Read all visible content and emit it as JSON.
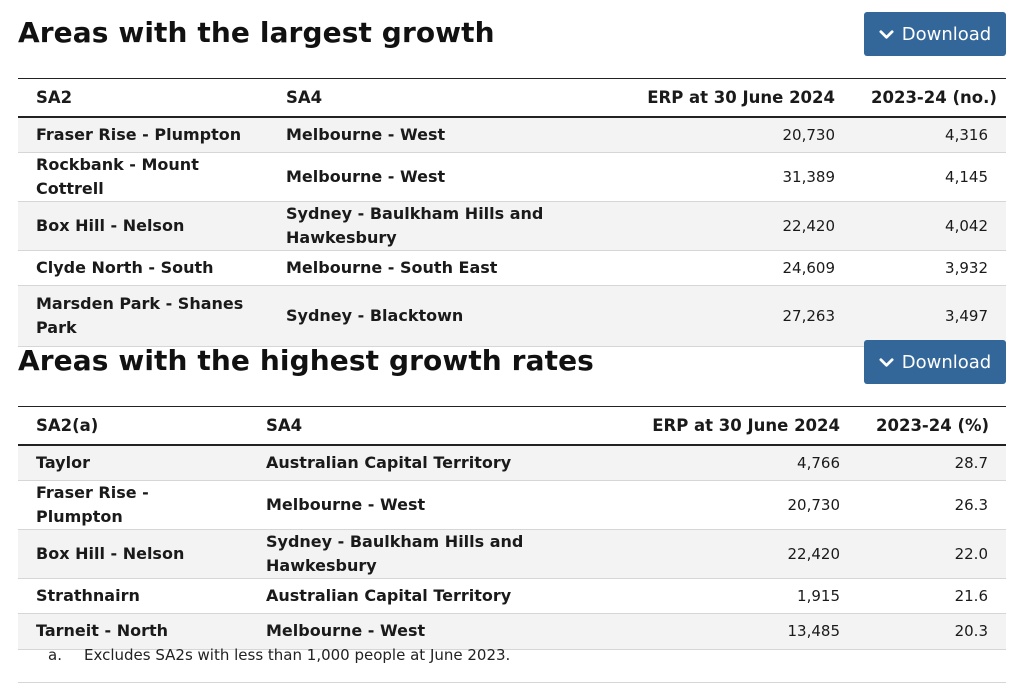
{
  "sections": [
    {
      "title": "Areas with the largest growth",
      "download_label": "Download",
      "headers": [
        "SA2",
        "SA4",
        "ERP at 30 June 2024",
        "2023-24 (no.)"
      ],
      "rows": [
        {
          "sa2": "Fraser Rise - Plumpton",
          "sa4": "Melbourne - West",
          "erp": "20,730",
          "change": "4,316"
        },
        {
          "sa2": "Rockbank - Mount Cottrell",
          "sa4": "Melbourne - West",
          "erp": "31,389",
          "change": "4,145"
        },
        {
          "sa2": "Box Hill - Nelson",
          "sa4": "Sydney - Baulkham Hills and Hawkesbury",
          "erp": "22,420",
          "change": "4,042"
        },
        {
          "sa2": "Clyde North - South",
          "sa4": "Melbourne - South East",
          "erp": "24,609",
          "change": "3,932"
        },
        {
          "sa2": "Marsden Park - Shanes Park",
          "sa4": "Sydney - Blacktown",
          "erp": "27,263",
          "change": "3,497"
        }
      ]
    },
    {
      "title": "Areas with the highest growth rates",
      "download_label": "Download",
      "headers": [
        "SA2(a)",
        "SA4",
        "ERP at 30 June 2024",
        "2023-24 (%)"
      ],
      "rows": [
        {
          "sa2": "Taylor",
          "sa4": "Australian Capital Territory",
          "erp": "4,766",
          "change": "28.7"
        },
        {
          "sa2": "Fraser Rise - Plumpton",
          "sa4": "Melbourne - West",
          "erp": "20,730",
          "change": "26.3"
        },
        {
          "sa2": "Box Hill - Nelson",
          "sa4": "Sydney - Baulkham Hills and Hawkesbury",
          "erp": "22,420",
          "change": "22.0"
        },
        {
          "sa2": "Strathnairn",
          "sa4": "Australian Capital Territory",
          "erp": "1,915",
          "change": "21.6"
        },
        {
          "sa2": "Tarneit - North",
          "sa4": "Melbourne - West",
          "erp": "13,485",
          "change": "20.3"
        }
      ]
    }
  ],
  "footnote": {
    "marker": "a.",
    "text": "Excludes SA2s with less than 1,000 people at June 2023."
  },
  "colors": {
    "button_bg": "#336699",
    "row_stripe": "#f3f3f3"
  }
}
